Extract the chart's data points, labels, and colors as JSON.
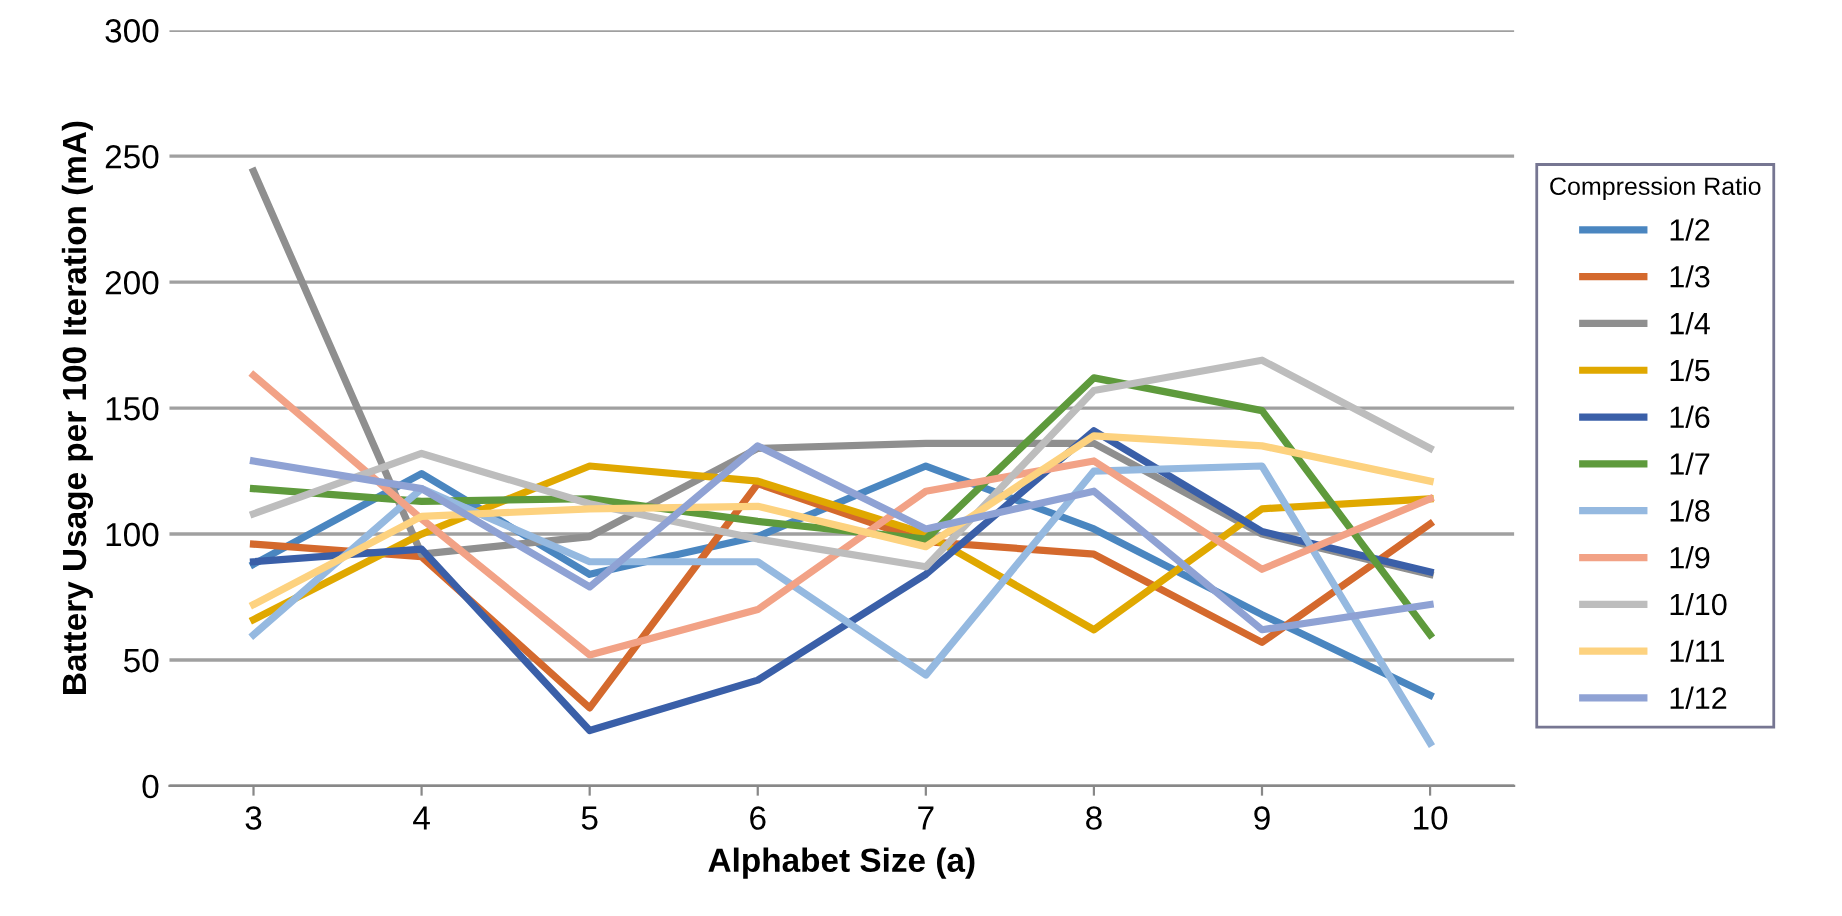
{
  "chart_data": {
    "type": "line",
    "xlabel": "Alphabet Size (a)",
    "ylabel": "Battery Usage per 100 Iteration (mA)",
    "legend_title": "Compression Ratio",
    "categories": [
      "3",
      "4",
      "5",
      "6",
      "7",
      "8",
      "9",
      "10"
    ],
    "ylim": [
      0,
      300
    ],
    "yticks": [
      0,
      50,
      100,
      150,
      200,
      250,
      300
    ],
    "grid": "y",
    "legend": "right",
    "marker": "none",
    "line_style": "solid",
    "series": [
      {
        "name": "1/2",
        "color": "#4a86c0",
        "values": [
          88,
          124,
          84,
          99,
          127,
          102,
          68,
          36
        ]
      },
      {
        "name": "1/3",
        "color": "#d4692d",
        "values": [
          96,
          91,
          31,
          120,
          97,
          92,
          57,
          104
        ]
      },
      {
        "name": "1/4",
        "color": "#8f8f8f",
        "values": [
          244,
          92,
          99,
          134,
          136,
          136,
          100,
          84
        ]
      },
      {
        "name": "1/5",
        "color": "#e0a800",
        "values": [
          66,
          100,
          127,
          121,
          100,
          62,
          110,
          114
        ]
      },
      {
        "name": "1/6",
        "color": "#3a5fa8",
        "values": [
          89,
          94,
          22,
          42,
          84,
          141,
          101,
          85
        ]
      },
      {
        "name": "1/7",
        "color": "#5e9a3c",
        "values": [
          118,
          113,
          114,
          105,
          98,
          162,
          149,
          60
        ]
      },
      {
        "name": "1/8",
        "color": "#95b9e0",
        "values": [
          60,
          118,
          89,
          89,
          44,
          125,
          127,
          17
        ]
      },
      {
        "name": "1/9",
        "color": "#f2a286",
        "values": [
          163,
          106,
          52,
          70,
          117,
          129,
          86,
          114
        ]
      },
      {
        "name": "1/10",
        "color": "#bdbdbd",
        "values": [
          108,
          132,
          112,
          98,
          87,
          157,
          169,
          134
        ]
      },
      {
        "name": "1/11",
        "color": "#fdd27f",
        "values": [
          72,
          107,
          110,
          111,
          95,
          139,
          135,
          121
        ]
      },
      {
        "name": "1/12",
        "color": "#8fa2d4",
        "values": [
          129,
          118,
          79,
          135,
          102,
          117,
          62,
          72
        ]
      }
    ]
  }
}
